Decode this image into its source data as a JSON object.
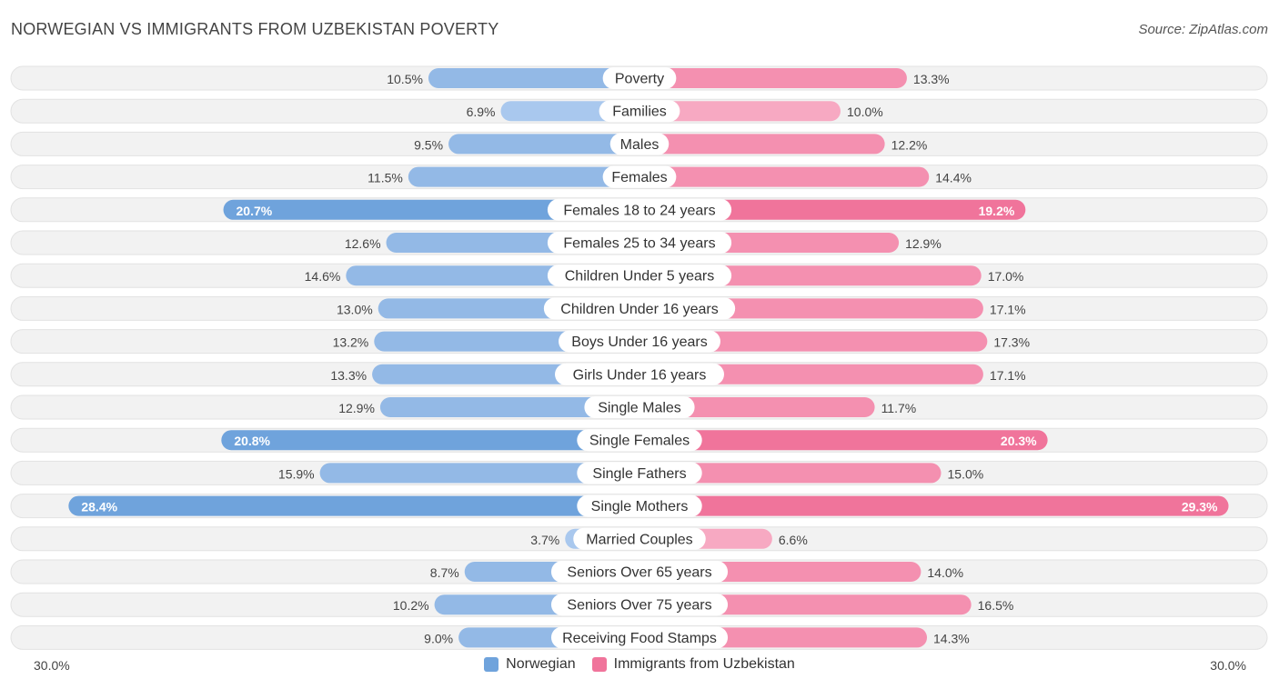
{
  "header": {
    "title": "NORWEGIAN VS IMMIGRANTS FROM UZBEKISTAN POVERTY",
    "source": "Source: ZipAtlas.com"
  },
  "colors": {
    "left": "#6fa3dc",
    "left_light": "#a9c8ee",
    "right": "#f0749b",
    "right_light": "#f7a9c2"
  },
  "chart_data": {
    "type": "bar",
    "orientation": "diverging-horizontal",
    "title": "NORWEGIAN VS IMMIGRANTS FROM UZBEKISTAN POVERTY",
    "xlim": [
      0,
      30
    ],
    "axis_left_label": "30.0%",
    "axis_right_label": "30.0%",
    "categories": [
      "Poverty",
      "Families",
      "Males",
      "Females",
      "Females 18 to 24 years",
      "Females 25 to 34 years",
      "Children Under 5 years",
      "Children Under 16 years",
      "Boys Under 16 years",
      "Girls Under 16 years",
      "Single Males",
      "Single Females",
      "Single Fathers",
      "Single Mothers",
      "Married Couples",
      "Seniors Over 65 years",
      "Seniors Over 75 years",
      "Receiving Food Stamps"
    ],
    "series": [
      {
        "name": "Norwegian",
        "values": [
          10.5,
          6.9,
          9.5,
          11.5,
          20.7,
          12.6,
          14.6,
          13.0,
          13.2,
          13.3,
          12.9,
          20.8,
          15.9,
          28.4,
          3.7,
          8.7,
          10.2,
          9.0
        ],
        "labels": [
          "10.5%",
          "6.9%",
          "9.5%",
          "11.5%",
          "20.7%",
          "12.6%",
          "14.6%",
          "13.0%",
          "13.2%",
          "13.3%",
          "12.9%",
          "20.8%",
          "15.9%",
          "28.4%",
          "3.7%",
          "8.7%",
          "10.2%",
          "9.0%"
        ]
      },
      {
        "name": "Immigrants from Uzbekistan",
        "values": [
          13.3,
          10.0,
          12.2,
          14.4,
          19.2,
          12.9,
          17.0,
          17.1,
          17.3,
          17.1,
          11.7,
          20.3,
          15.0,
          29.3,
          6.6,
          14.0,
          16.5,
          14.3
        ],
        "labels": [
          "13.3%",
          "10.0%",
          "12.2%",
          "14.4%",
          "19.2%",
          "12.9%",
          "17.0%",
          "17.1%",
          "17.3%",
          "17.1%",
          "11.7%",
          "20.3%",
          "15.0%",
          "29.3%",
          "6.6%",
          "14.0%",
          "16.5%",
          "14.3%"
        ]
      }
    ],
    "legend": [
      "Norwegian",
      "Immigrants from Uzbekistan"
    ]
  }
}
